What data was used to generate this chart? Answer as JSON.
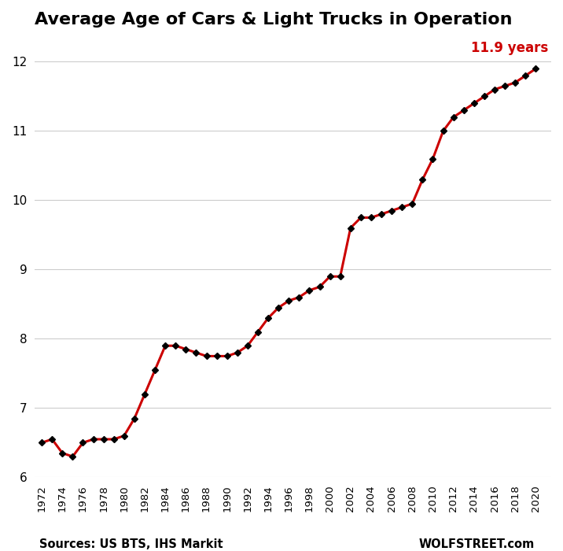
{
  "title": "Average Age of Cars & Light Trucks in Operation",
  "annotation": "11.9 years",
  "annotation_color": "#cc0000",
  "line_color": "#cc0000",
  "marker_color": "#000000",
  "source_left": "Sources: US BTS, IHS Markit",
  "source_right": "WOLFSTREET.com",
  "years": [
    1972,
    1973,
    1974,
    1975,
    1976,
    1977,
    1978,
    1979,
    1980,
    1981,
    1982,
    1983,
    1984,
    1985,
    1986,
    1987,
    1988,
    1989,
    1990,
    1991,
    1992,
    1993,
    1994,
    1995,
    1996,
    1997,
    1998,
    1999,
    2000,
    2001,
    2002,
    2003,
    2004,
    2005,
    2006,
    2007,
    2008,
    2009,
    2010,
    2011,
    2012,
    2013,
    2014,
    2015,
    2016,
    2017,
    2018,
    2019,
    2020
  ],
  "values": [
    6.5,
    6.55,
    6.35,
    6.3,
    6.5,
    6.55,
    6.55,
    6.55,
    6.6,
    6.85,
    7.2,
    7.55,
    7.9,
    7.9,
    7.85,
    7.8,
    7.75,
    7.75,
    7.75,
    7.8,
    7.9,
    8.1,
    8.3,
    8.45,
    8.55,
    8.6,
    8.7,
    8.75,
    8.9,
    8.9,
    9.6,
    9.75,
    9.75,
    9.8,
    9.85,
    9.9,
    9.95,
    10.3,
    10.6,
    11.0,
    11.2,
    11.3,
    11.4,
    11.5,
    11.6,
    11.65,
    11.7,
    11.8,
    11.9
  ],
  "ylim": [
    6.0,
    12.35
  ],
  "yticks": [
    6,
    7,
    8,
    9,
    10,
    11,
    12
  ],
  "xtick_years": [
    1972,
    1974,
    1976,
    1978,
    1980,
    1982,
    1984,
    1986,
    1988,
    1990,
    1992,
    1994,
    1996,
    1998,
    2000,
    2002,
    2004,
    2006,
    2008,
    2010,
    2012,
    2014,
    2016,
    2018,
    2020
  ],
  "xlim_left": 1971.3,
  "xlim_right": 2021.5,
  "background_color": "#ffffff",
  "grid_color": "#cccccc",
  "title_fontsize": 16,
  "tick_fontsize": 11,
  "xtick_fontsize": 9.5,
  "source_fontsize": 10.5
}
